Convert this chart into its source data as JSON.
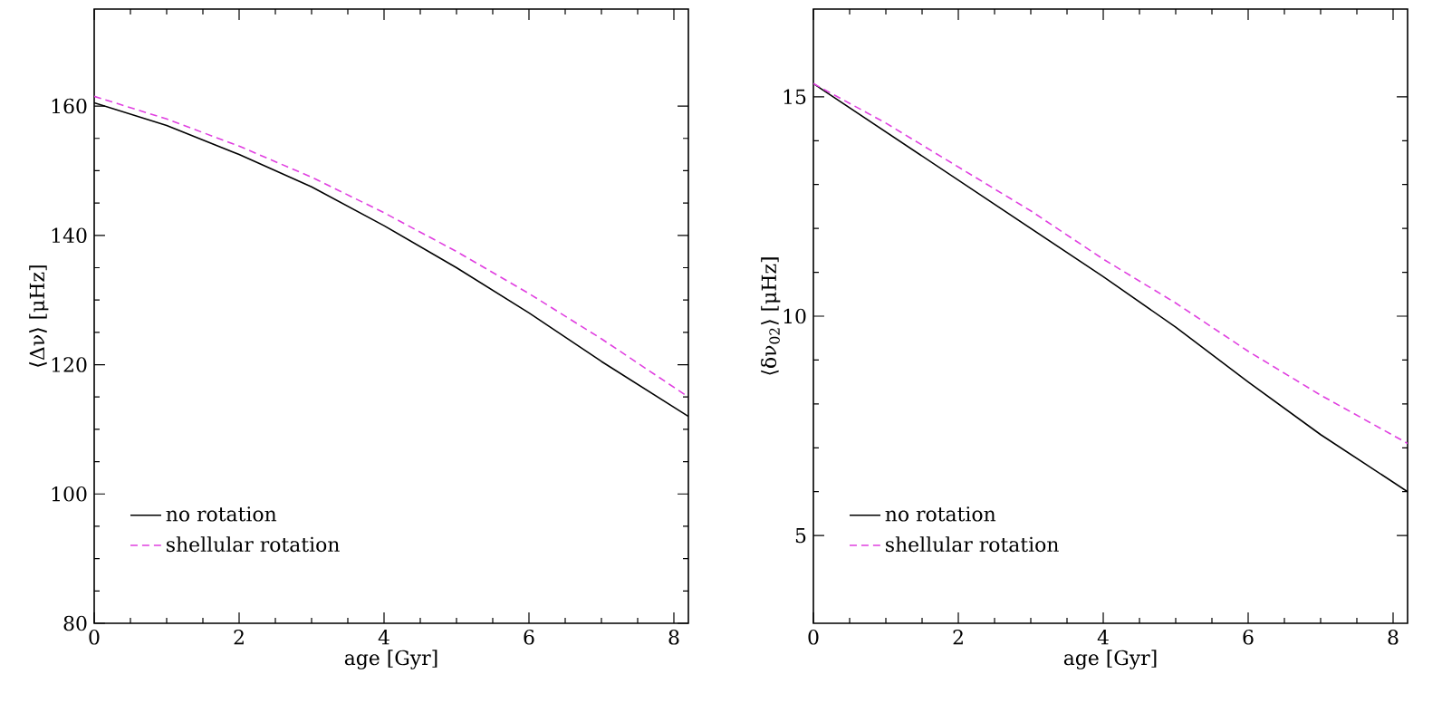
{
  "chart_data": [
    {
      "type": "line",
      "xlabel": "age [Gyr]",
      "ylabel": "⟨Δν⟩ [μHz]",
      "x": [
        0,
        1,
        2,
        3,
        4,
        5,
        6,
        7,
        8.2
      ],
      "xlim": [
        0,
        8.2
      ],
      "ylim": [
        80,
        175
      ],
      "xticks": [
        0,
        2,
        4,
        6,
        8
      ],
      "yticks": [
        80,
        100,
        120,
        140,
        160
      ],
      "legend": "bottom left",
      "series": [
        {
          "name": "no rotation",
          "color": "#000000",
          "line_style": "solid",
          "values": [
            160.5,
            157,
            152.5,
            147.5,
            141.5,
            135,
            128,
            120.5,
            112
          ]
        },
        {
          "name": "shellular rotation",
          "color": "#e040e0",
          "line_style": "dashed",
          "values": [
            161.5,
            158,
            153.8,
            149,
            143.5,
            137.5,
            131,
            124,
            115
          ]
        }
      ]
    },
    {
      "type": "line",
      "xlabel": "age [Gyr]",
      "ylabel": "⟨δν$_{02}$⟩ [μHz]",
      "x": [
        0,
        1,
        2,
        3,
        4,
        5,
        6,
        7,
        8.2
      ],
      "xlim": [
        0,
        8.2
      ],
      "ylim": [
        3,
        17
      ],
      "xticks": [
        0,
        2,
        4,
        6,
        8
      ],
      "yticks": [
        5,
        10,
        15
      ],
      "legend": "bottom left",
      "series": [
        {
          "name": "no rotation",
          "color": "#000000",
          "line_style": "solid",
          "values": [
            15.3,
            14.2,
            13.1,
            12.0,
            10.9,
            9.75,
            8.5,
            7.3,
            6.0
          ]
        },
        {
          "name": "shellular rotation",
          "color": "#e040e0",
          "line_style": "dashed",
          "values": [
            15.3,
            14.4,
            13.4,
            12.4,
            11.3,
            10.3,
            9.2,
            8.2,
            7.1
          ]
        }
      ]
    }
  ]
}
